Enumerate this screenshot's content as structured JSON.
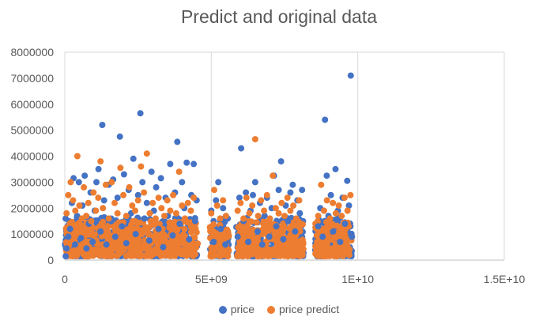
{
  "chart_data": {
    "type": "scatter",
    "title": "Predict and original data",
    "xlabel": "",
    "ylabel": "",
    "xlim": [
      0,
      15000000000
    ],
    "ylim": [
      0,
      8000000
    ],
    "x_ticks": [
      0,
      5000000000,
      10000000000,
      15000000000
    ],
    "x_tick_labels": [
      "0",
      "5E+09",
      "1E+10",
      "1.5E+10"
    ],
    "y_ticks": [
      0,
      1000000,
      2000000,
      3000000,
      4000000,
      5000000,
      6000000,
      7000000,
      8000000
    ],
    "y_tick_labels": [
      "0",
      "1000000",
      "2000000",
      "3000000",
      "4000000",
      "5000000",
      "6000000",
      "7000000",
      "8000000"
    ],
    "grid": "vertical",
    "legend": "bottom",
    "series": [
      {
        "name": "price",
        "color": "#4472C4",
        "points": [
          [
            30000000,
            150000
          ],
          [
            60000000,
            450000
          ],
          [
            120000000,
            900000
          ],
          [
            180000000,
            1200000
          ],
          [
            240000000,
            2200000
          ],
          [
            300000000,
            3150000
          ],
          [
            350000000,
            600000
          ],
          [
            420000000,
            1700000
          ],
          [
            480000000,
            3000000
          ],
          [
            550000000,
            850000
          ],
          [
            600000000,
            2100000
          ],
          [
            680000000,
            3250000
          ],
          [
            740000000,
            450000
          ],
          [
            820000000,
            1400000
          ],
          [
            880000000,
            2600000
          ],
          [
            950000000,
            700000
          ],
          [
            1020000000,
            1900000
          ],
          [
            1080000000,
            3000000
          ],
          [
            1150000000,
            3500000
          ],
          [
            1220000000,
            1100000
          ],
          [
            1280000000,
            5200000
          ],
          [
            1340000000,
            2300000
          ],
          [
            1420000000,
            600000
          ],
          [
            1500000000,
            2900000
          ],
          [
            1580000000,
            1500000
          ],
          [
            1650000000,
            3100000
          ],
          [
            1720000000,
            900000
          ],
          [
            1800000000,
            2400000
          ],
          [
            1880000000,
            4750000
          ],
          [
            1950000000,
            1300000
          ],
          [
            2020000000,
            3300000
          ],
          [
            2100000000,
            650000
          ],
          [
            2180000000,
            2700000
          ],
          [
            2260000000,
            1800000
          ],
          [
            2340000000,
            3900000
          ],
          [
            2420000000,
            1000000
          ],
          [
            2500000000,
            2500000
          ],
          [
            2580000000,
            5650000
          ],
          [
            2650000000,
            3000000
          ],
          [
            2720000000,
            1600000
          ],
          [
            2800000000,
            2200000
          ],
          [
            2880000000,
            750000
          ],
          [
            2960000000,
            3400000
          ],
          [
            3040000000,
            1900000
          ],
          [
            3120000000,
            2800000
          ],
          [
            3200000000,
            1200000
          ],
          [
            3280000000,
            3150000
          ],
          [
            3360000000,
            500000
          ],
          [
            3440000000,
            2400000
          ],
          [
            3520000000,
            1700000
          ],
          [
            3600000000,
            3700000
          ],
          [
            3680000000,
            950000
          ],
          [
            3760000000,
            2600000
          ],
          [
            3840000000,
            4550000
          ],
          [
            3920000000,
            1400000
          ],
          [
            4000000000,
            3000000
          ],
          [
            4080000000,
            2000000
          ],
          [
            4160000000,
            3750000
          ],
          [
            4240000000,
            800000
          ],
          [
            4320000000,
            2500000
          ],
          [
            4400000000,
            3700000
          ],
          [
            4450000000,
            1500000
          ],
          [
            4500000000,
            2300000
          ],
          [
            5000000000,
            1900000
          ],
          [
            5080000000,
            700000
          ],
          [
            5160000000,
            2300000
          ],
          [
            5240000000,
            3000000
          ],
          [
            5320000000,
            1200000
          ],
          [
            5400000000,
            2000000
          ],
          [
            5480000000,
            600000
          ],
          [
            5560000000,
            1600000
          ],
          [
            5900000000,
            900000
          ],
          [
            5960000000,
            2400000
          ],
          [
            6020000000,
            4300000
          ],
          [
            6100000000,
            1500000
          ],
          [
            6180000000,
            2600000
          ],
          [
            6260000000,
            700000
          ],
          [
            6340000000,
            1900000
          ],
          [
            6420000000,
            2500000
          ],
          [
            6500000000,
            3000000
          ],
          [
            6580000000,
            1100000
          ],
          [
            6660000000,
            2200000
          ],
          [
            6740000000,
            600000
          ],
          [
            6820000000,
            1700000
          ],
          [
            6900000000,
            2400000
          ],
          [
            6980000000,
            900000
          ],
          [
            7060000000,
            2000000
          ],
          [
            7140000000,
            3250000
          ],
          [
            7220000000,
            1300000
          ],
          [
            7300000000,
            2700000
          ],
          [
            7380000000,
            3800000
          ],
          [
            7460000000,
            800000
          ],
          [
            7540000000,
            2100000
          ],
          [
            7620000000,
            1500000
          ],
          [
            7700000000,
            2600000
          ],
          [
            7780000000,
            2900000
          ],
          [
            7860000000,
            1100000
          ],
          [
            7940000000,
            2300000
          ],
          [
            8020000000,
            1800000
          ],
          [
            8100000000,
            2700000
          ],
          [
            8650000000,
            1300000
          ],
          [
            8720000000,
            2000000
          ],
          [
            8800000000,
            900000
          ],
          [
            8880000000,
            5400000
          ],
          [
            8940000000,
            3250000
          ],
          [
            9000000000,
            1700000
          ],
          [
            9080000000,
            2500000
          ],
          [
            9160000000,
            1100000
          ],
          [
            9240000000,
            3500000
          ],
          [
            9320000000,
            1900000
          ],
          [
            9400000000,
            700000
          ],
          [
            9480000000,
            2400000
          ],
          [
            9560000000,
            1400000
          ],
          [
            9640000000,
            3050000
          ],
          [
            9700000000,
            2100000
          ],
          [
            9760000000,
            7100000
          ],
          [
            9800000000,
            900000
          ]
        ]
      },
      {
        "name": "price predict",
        "color": "#ED7D31",
        "points": [
          [
            60000000,
            1800000
          ],
          [
            120000000,
            2500000
          ],
          [
            200000000,
            3000000
          ],
          [
            280000000,
            2300000
          ],
          [
            360000000,
            1900000
          ],
          [
            430000000,
            4000000
          ],
          [
            500000000,
            2100000
          ],
          [
            580000000,
            1600000
          ],
          [
            650000000,
            2800000
          ],
          [
            730000000,
            1700000
          ],
          [
            800000000,
            2200000
          ],
          [
            900000000,
            1500000
          ],
          [
            980000000,
            2600000
          ],
          [
            1060000000,
            1900000
          ],
          [
            1140000000,
            2400000
          ],
          [
            1220000000,
            3800000
          ],
          [
            1300000000,
            2000000
          ],
          [
            1400000000,
            2900000
          ],
          [
            1500000000,
            1600000
          ],
          [
            1600000000,
            3000000
          ],
          [
            1700000000,
            2200000
          ],
          [
            1800000000,
            1800000
          ],
          [
            1900000000,
            3550000
          ],
          [
            2000000000,
            2500000
          ],
          [
            2100000000,
            1700000
          ],
          [
            2200000000,
            2800000
          ],
          [
            2300000000,
            2100000
          ],
          [
            2400000000,
            1900000
          ],
          [
            2500000000,
            2300000
          ],
          [
            2600000000,
            3600000
          ],
          [
            2700000000,
            2600000
          ],
          [
            2800000000,
            4100000
          ],
          [
            2900000000,
            1800000
          ],
          [
            3000000000,
            2200000
          ],
          [
            3100000000,
            1600000
          ],
          [
            3200000000,
            2400000
          ],
          [
            3300000000,
            2000000
          ],
          [
            3400000000,
            1700000
          ],
          [
            3500000000,
            2300000
          ],
          [
            3600000000,
            1900000
          ],
          [
            3700000000,
            2500000
          ],
          [
            3800000000,
            1800000
          ],
          [
            3900000000,
            3400000
          ],
          [
            4000000000,
            2100000
          ],
          [
            4100000000,
            1600000
          ],
          [
            4200000000,
            2200000
          ],
          [
            4300000000,
            1900000
          ],
          [
            4400000000,
            2400000
          ],
          [
            5000000000,
            1800000
          ],
          [
            5100000000,
            2700000
          ],
          [
            5200000000,
            2100000
          ],
          [
            5300000000,
            1600000
          ],
          [
            5400000000,
            2300000
          ],
          [
            5500000000,
            1700000
          ],
          [
            5900000000,
            1900000
          ],
          [
            6000000000,
            2200000
          ],
          [
            6100000000,
            1600000
          ],
          [
            6200000000,
            2400000
          ],
          [
            6300000000,
            1800000
          ],
          [
            6400000000,
            2100000
          ],
          [
            6500000000,
            4650000
          ],
          [
            6600000000,
            1700000
          ],
          [
            6700000000,
            2300000
          ],
          [
            6800000000,
            1900000
          ],
          [
            6900000000,
            2500000
          ],
          [
            7000000000,
            1600000
          ],
          [
            7100000000,
            3250000
          ],
          [
            7200000000,
            2000000
          ],
          [
            7300000000,
            1800000
          ],
          [
            7400000000,
            2200000
          ],
          [
            7500000000,
            1700000
          ],
          [
            7600000000,
            2400000
          ],
          [
            7700000000,
            1900000
          ],
          [
            7800000000,
            2100000
          ],
          [
            7900000000,
            1600000
          ],
          [
            8000000000,
            2300000
          ],
          [
            8650000000,
            1700000
          ],
          [
            8750000000,
            2900000
          ],
          [
            8850000000,
            1900000
          ],
          [
            8950000000,
            2300000
          ],
          [
            9050000000,
            1600000
          ],
          [
            9150000000,
            2200000
          ],
          [
            9250000000,
            1800000
          ],
          [
            9350000000,
            2100000
          ],
          [
            9450000000,
            1700000
          ],
          [
            9550000000,
            2400000
          ],
          [
            9650000000,
            1900000
          ],
          [
            9750000000,
            2500000
          ]
        ]
      }
    ]
  }
}
